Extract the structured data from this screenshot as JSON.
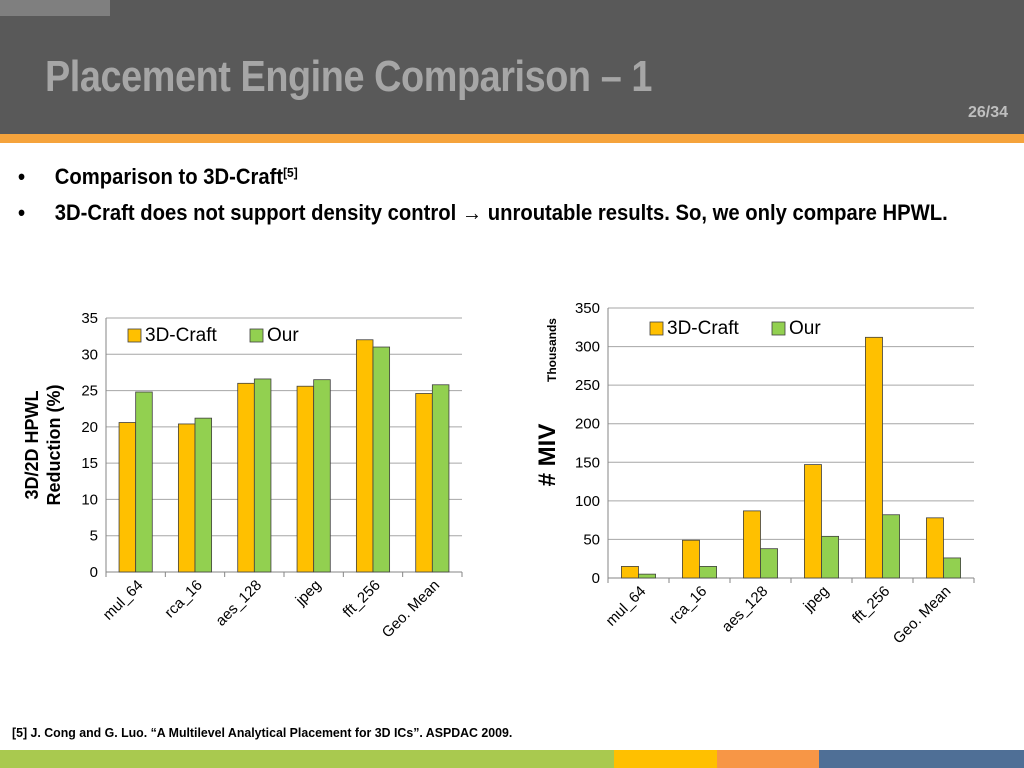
{
  "header": {
    "title": "Placement Engine Comparison – 1",
    "page_number": "26/34"
  },
  "bullets": [
    {
      "text": "Comparison to 3D-Craft",
      "sup": "[5]"
    },
    {
      "text": "3D-Craft does not support density control → unroutable results. So, we only compare HPWL."
    }
  ],
  "footnote": "[5] J. Cong and G. Luo. “A Multilevel Analytical Placement for 3D ICs”. ASPDAC 2009.",
  "colors": {
    "series_3dcraft": "#ffc000",
    "series_our": "#92d050",
    "header_bg": "#595959",
    "accent_orange": "#f5a33c",
    "footer_green": "#a9c94f",
    "footer_yellow": "#ffc000",
    "footer_orange": "#f79646",
    "footer_blue": "#4f6f96"
  },
  "chart_data": [
    {
      "type": "bar",
      "categories": [
        "mul_64",
        "rca_16",
        "aes_128",
        "jpeg",
        "fft_256",
        "Geo. Mean"
      ],
      "series": [
        {
          "name": "3D-Craft",
          "values": [
            20.6,
            20.4,
            26.0,
            25.6,
            32.0,
            24.6
          ]
        },
        {
          "name": "Our",
          "values": [
            24.8,
            21.2,
            26.6,
            26.5,
            31.0,
            25.8
          ]
        }
      ],
      "ylabel": "3D/2D HPWL Reduction (%)",
      "ylim": [
        0,
        35
      ],
      "yticks": [
        0,
        5,
        10,
        15,
        20,
        25,
        30,
        35
      ],
      "grid": true,
      "legend": "top-left"
    },
    {
      "type": "bar",
      "categories": [
        "mul_64",
        "rca_16",
        "aes_128",
        "jpeg",
        "fft_256",
        "Geo. Mean"
      ],
      "series": [
        {
          "name": "3D-Craft",
          "values": [
            15,
            49,
            87,
            147,
            312,
            78
          ]
        },
        {
          "name": "Our",
          "values": [
            5,
            15,
            38,
            54,
            82,
            26
          ]
        }
      ],
      "ylabel": "# MIV",
      "yunit": "Thousands",
      "ylim": [
        0,
        350
      ],
      "yticks": [
        0,
        50,
        100,
        150,
        200,
        250,
        300,
        350
      ],
      "grid": true,
      "legend": "top-center"
    }
  ]
}
